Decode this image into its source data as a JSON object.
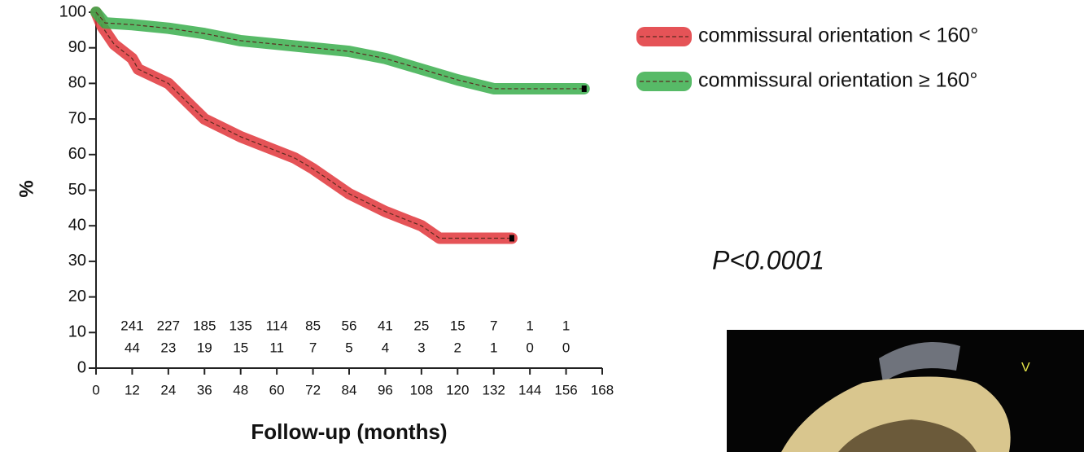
{
  "chart_data": {
    "type": "line",
    "y_label": "%",
    "x_label": "Follow-up (months)",
    "xlim": [
      0,
      168
    ],
    "xticks": [
      0,
      12,
      24,
      36,
      48,
      60,
      72,
      84,
      96,
      108,
      120,
      132,
      144,
      156,
      168
    ],
    "ylim": [
      0,
      100
    ],
    "yticks": [
      0,
      10,
      20,
      30,
      40,
      50,
      60,
      70,
      80,
      90,
      100
    ],
    "series": [
      {
        "name": "commissural orientation < 160°",
        "color": "#e0353a",
        "x": [
          0,
          2,
          6,
          12,
          14,
          24,
          30,
          36,
          48,
          54,
          66,
          72,
          84,
          96,
          108,
          114,
          120,
          132,
          138
        ],
        "values": [
          100,
          96,
          91,
          87,
          84,
          80,
          75,
          70,
          65,
          63,
          59,
          56,
          49,
          44,
          40,
          36.5,
          36.5,
          36.5,
          36.5
        ]
      },
      {
        "name": "commissural orientation ≥ 160°",
        "color": "#3aae4c",
        "x": [
          0,
          3,
          12,
          24,
          36,
          48,
          60,
          72,
          84,
          96,
          108,
          120,
          132,
          144,
          156,
          162
        ],
        "values": [
          100,
          97,
          96.5,
          95.5,
          94,
          92,
          91,
          90,
          89,
          87,
          84,
          81,
          78.5,
          78.5,
          78.5,
          78.5
        ]
      }
    ],
    "at_risk": [
      [
        241,
        227,
        185,
        135,
        114,
        85,
        56,
        41,
        25,
        15,
        7,
        1,
        1
      ],
      [
        44,
        23,
        19,
        15,
        11,
        7,
        5,
        4,
        3,
        2,
        1,
        0,
        0
      ]
    ],
    "annotation": "P<0.0001"
  },
  "inset_label": "V"
}
